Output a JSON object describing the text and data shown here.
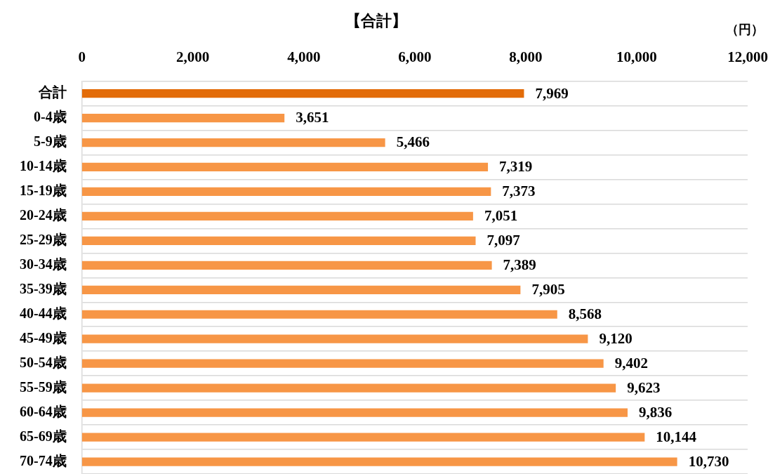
{
  "chart_data": {
    "type": "bar",
    "orientation": "horizontal",
    "title": "【合計】",
    "xlabel": "（円）",
    "categories": [
      "合計",
      "0-4歳",
      "5-9歳",
      "10-14歳",
      "15-19歳",
      "20-24歳",
      "25-29歳",
      "30-34歳",
      "35-39歳",
      "40-44歳",
      "45-49歳",
      "50-54歳",
      "55-59歳",
      "60-64歳",
      "65-69歳",
      "70-74歳"
    ],
    "values": [
      7969,
      3651,
      5466,
      7319,
      7373,
      7051,
      7097,
      7389,
      7905,
      8568,
      9120,
      9402,
      9623,
      9836,
      10144,
      10730
    ],
    "colors": [
      "#e36c09",
      "#f79646",
      "#f79646",
      "#f79646",
      "#f79646",
      "#f79646",
      "#f79646",
      "#f79646",
      "#f79646",
      "#f79646",
      "#f79646",
      "#f79646",
      "#f79646",
      "#f79646",
      "#f79646",
      "#f79646"
    ],
    "value_labels": [
      "7,969",
      "3,651",
      "5,466",
      "7,319",
      "7,373",
      "7,051",
      "7,097",
      "7,389",
      "7,905",
      "8,568",
      "9,120",
      "9,402",
      "9,623",
      "9,836",
      "10,144",
      "10,730"
    ],
    "xlim": [
      0,
      12000
    ],
    "xticks": [
      {
        "value": 0,
        "label": "0"
      },
      {
        "value": 2000,
        "label": "2,000"
      },
      {
        "value": 4000,
        "label": "4,000"
      },
      {
        "value": 6000,
        "label": "6,000"
      },
      {
        "value": 8000,
        "label": "8,000"
      },
      {
        "value": 10000,
        "label": "10,000"
      },
      {
        "value": 12000,
        "label": "12,000"
      }
    ],
    "grid": "y",
    "legend": false
  }
}
